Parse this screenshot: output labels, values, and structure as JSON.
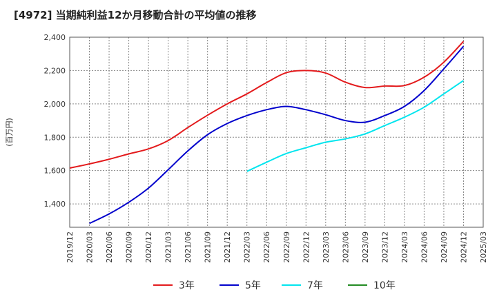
{
  "chart_data": {
    "type": "line",
    "title": "[4972]  当期純利益12か月移動合計の平均値の推移",
    "ylabel": "(百万円)",
    "xlabel": "",
    "ylim": [
      1260,
      2400
    ],
    "yticks": [
      "1,400",
      "1,600",
      "1,800",
      "2,000",
      "2,200",
      "2,400"
    ],
    "ytick_values": [
      1400,
      1600,
      1800,
      2000,
      2200,
      2400
    ],
    "xtick_labels": [
      "2019/12",
      "2020/03",
      "2020/06",
      "2020/09",
      "2020/12",
      "2021/03",
      "2021/06",
      "2021/09",
      "2021/12",
      "2022/03",
      "2022/06",
      "2022/09",
      "2022/12",
      "2023/03",
      "2023/06",
      "2023/09",
      "2023/12",
      "2024/03",
      "2024/06",
      "2024/09",
      "2024/12",
      "2025/03"
    ],
    "grid": true,
    "legend_position": "bottom",
    "series": [
      {
        "name": "3年",
        "color": "#e31a1c",
        "x": [
          "2019/12",
          "2020/03",
          "2020/06",
          "2020/09",
          "2020/12",
          "2021/03",
          "2021/06",
          "2021/09",
          "2021/12",
          "2022/03",
          "2022/06",
          "2022/09",
          "2022/12",
          "2023/03",
          "2023/06",
          "2023/09",
          "2023/12",
          "2024/03",
          "2024/06",
          "2024/09",
          "2024/12"
        ],
        "values": [
          1615,
          1640,
          1668,
          1700,
          1730,
          1780,
          1858,
          1932,
          2000,
          2060,
          2128,
          2187,
          2200,
          2185,
          2130,
          2098,
          2107,
          2110,
          2160,
          2250,
          2375
        ]
      },
      {
        "name": "5年",
        "color": "#0000cc",
        "x": [
          "2020/03",
          "2020/06",
          "2020/09",
          "2020/12",
          "2021/03",
          "2021/06",
          "2021/09",
          "2021/12",
          "2022/03",
          "2022/06",
          "2022/09",
          "2022/12",
          "2023/03",
          "2023/06",
          "2023/09",
          "2023/12",
          "2024/03",
          "2024/06",
          "2024/09",
          "2024/12"
        ],
        "values": [
          1283,
          1340,
          1410,
          1495,
          1605,
          1718,
          1815,
          1882,
          1930,
          1965,
          1985,
          1965,
          1935,
          1900,
          1890,
          1930,
          1985,
          2080,
          2210,
          2345
        ]
      },
      {
        "name": "7年",
        "color": "#00e5ee",
        "x": [
          "2022/03",
          "2022/06",
          "2022/09",
          "2022/12",
          "2023/03",
          "2023/06",
          "2023/09",
          "2023/12",
          "2024/03",
          "2024/06",
          "2024/09",
          "2024/12"
        ],
        "values": [
          1595,
          1650,
          1702,
          1737,
          1770,
          1790,
          1820,
          1870,
          1920,
          1980,
          2060,
          2140
        ]
      },
      {
        "name": "10年",
        "color": "#228b22",
        "x": [],
        "values": []
      }
    ]
  }
}
